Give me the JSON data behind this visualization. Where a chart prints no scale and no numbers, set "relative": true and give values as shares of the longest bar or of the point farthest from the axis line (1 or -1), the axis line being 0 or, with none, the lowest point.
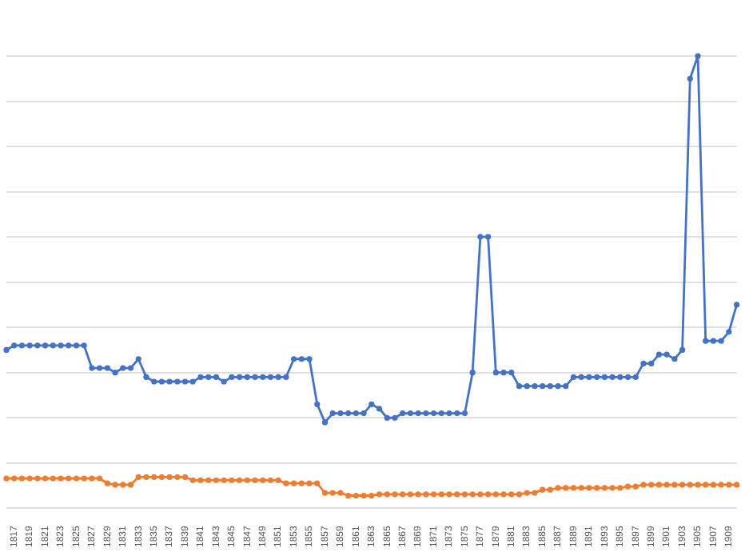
{
  "chart_data": {
    "type": "line",
    "relative": true,
    "grid": "y",
    "legend": false,
    "marker": "circle",
    "line_style": "solid",
    "categories": [
      null,
      "1817",
      null,
      "1819",
      null,
      "1821",
      null,
      "1823",
      null,
      "1825",
      null,
      "1827",
      null,
      "1829",
      null,
      "1831",
      null,
      "1833",
      null,
      "1835",
      null,
      "1837",
      null,
      "1839",
      null,
      "1841",
      null,
      "1843",
      null,
      "1845",
      null,
      "1847",
      null,
      "1849",
      null,
      "1851",
      null,
      "1853",
      null,
      "1855",
      null,
      "1857",
      null,
      "1859",
      null,
      "1861",
      null,
      "1863",
      null,
      "1865",
      null,
      "1867",
      null,
      "1869",
      null,
      "1871",
      null,
      "1873",
      null,
      "1875",
      null,
      "1877",
      null,
      "1879",
      null,
      "1881",
      null,
      "1883",
      null,
      "1885",
      null,
      "1887",
      null,
      "1889",
      null,
      "1891",
      null,
      "1893",
      null,
      "1895",
      null,
      "1897",
      null,
      "1899",
      null,
      "1901",
      null,
      "1903",
      null,
      "1905",
      null,
      "1907",
      null,
      "1909",
      null
    ],
    "series": [
      {
        "color": "#4472c4",
        "values": [
          0.35,
          0.36,
          0.36,
          0.36,
          0.36,
          0.36,
          0.36,
          0.36,
          0.36,
          0.36,
          0.36,
          0.31,
          0.31,
          0.31,
          0.3,
          0.31,
          0.31,
          0.33,
          0.29,
          0.28,
          0.28,
          0.28,
          0.28,
          0.28,
          0.28,
          0.29,
          0.29,
          0.29,
          0.28,
          0.29,
          0.29,
          0.29,
          0.29,
          0.29,
          0.29,
          0.29,
          0.29,
          0.33,
          0.33,
          0.33,
          0.23,
          0.19,
          0.21,
          0.21,
          0.21,
          0.21,
          0.21,
          0.23,
          0.22,
          0.2,
          0.2,
          0.21,
          0.21,
          0.21,
          0.21,
          0.21,
          0.21,
          0.21,
          0.21,
          0.21,
          0.3,
          0.6,
          0.6,
          0.3,
          0.3,
          0.3,
          0.27,
          0.27,
          0.27,
          0.27,
          0.27,
          0.27,
          0.27,
          0.29,
          0.29,
          0.29,
          0.29,
          0.29,
          0.29,
          0.29,
          0.29,
          0.29,
          0.32,
          0.32,
          0.34,
          0.34,
          0.33,
          0.35,
          0.95,
          1,
          0.37,
          0.37,
          0.37,
          0.39,
          0.45
        ]
      },
      {
        "color": "#ed7d31",
        "values": [
          0.066,
          0.066,
          0.066,
          0.066,
          0.066,
          0.066,
          0.066,
          0.066,
          0.066,
          0.066,
          0.066,
          0.066,
          0.066,
          0.055,
          0.052,
          0.052,
          0.052,
          0.069,
          0.069,
          0.069,
          0.069,
          0.069,
          0.069,
          0.069,
          0.062,
          0.062,
          0.062,
          0.062,
          0.062,
          0.062,
          0.062,
          0.062,
          0.062,
          0.062,
          0.062,
          0.062,
          0.055,
          0.055,
          0.055,
          0.055,
          0.055,
          0.034,
          0.034,
          0.034,
          0.028,
          0.028,
          0.028,
          0.028,
          0.031,
          0.031,
          0.031,
          0.031,
          0.031,
          0.031,
          0.031,
          0.031,
          0.031,
          0.031,
          0.031,
          0.031,
          0.031,
          0.031,
          0.031,
          0.031,
          0.031,
          0.031,
          0.031,
          0.034,
          0.034,
          0.041,
          0.041,
          0.045,
          0.045,
          0.045,
          0.045,
          0.045,
          0.045,
          0.045,
          0.045,
          0.045,
          0.048,
          0.048,
          0.052,
          0.052,
          0.052,
          0.052,
          0.052,
          0.052,
          0.052,
          0.052,
          0.052,
          0.052,
          0.052,
          0.052,
          0.052
        ]
      }
    ]
  }
}
